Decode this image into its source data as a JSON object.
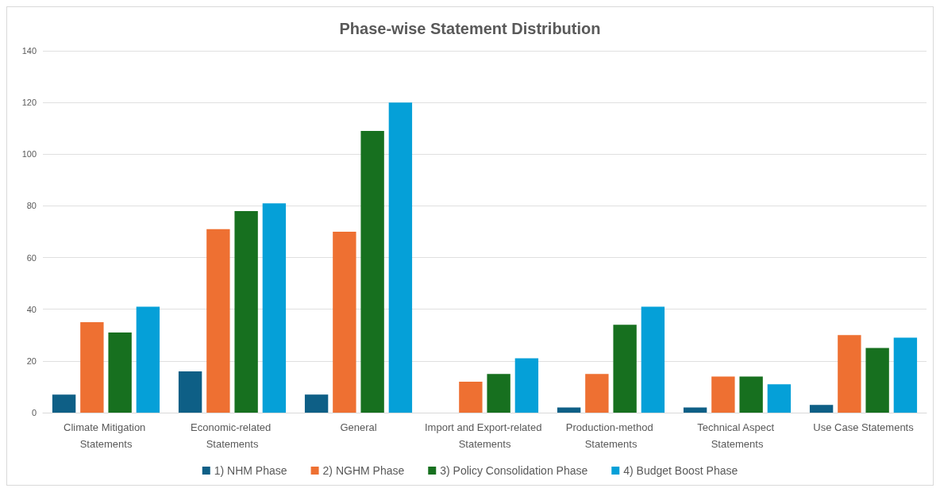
{
  "chart_data": {
    "type": "bar",
    "title": "Phase-wise Statement Distribution",
    "categories": [
      "Climate Mitigation Statements",
      "Economic-related Statements",
      "General",
      "Import and Export-related Statements",
      "Production-method Statements",
      "Technical Aspect Statements",
      "Use Case Statements"
    ],
    "series": [
      {
        "name": "1) NHM Phase",
        "color": "#0e5f86",
        "values": [
          7,
          16,
          7,
          0,
          2,
          2,
          3
        ]
      },
      {
        "name": "2) NGHM Phase",
        "color": "#ee7032",
        "values": [
          35,
          71,
          70,
          12,
          15,
          14,
          30
        ]
      },
      {
        "name": "3) Policy Consolidation Phase",
        "color": "#17701f",
        "values": [
          31,
          78,
          109,
          15,
          34,
          14,
          25
        ]
      },
      {
        "name": "4) Budget Boost Phase",
        "color": "#05a0d8",
        "values": [
          41,
          81,
          120,
          21,
          41,
          11,
          29
        ]
      }
    ],
    "ylim": [
      0,
      140
    ],
    "yticks": [
      0,
      20,
      40,
      60,
      80,
      100,
      120,
      140
    ],
    "grid": "y",
    "legend": "bottom"
  }
}
